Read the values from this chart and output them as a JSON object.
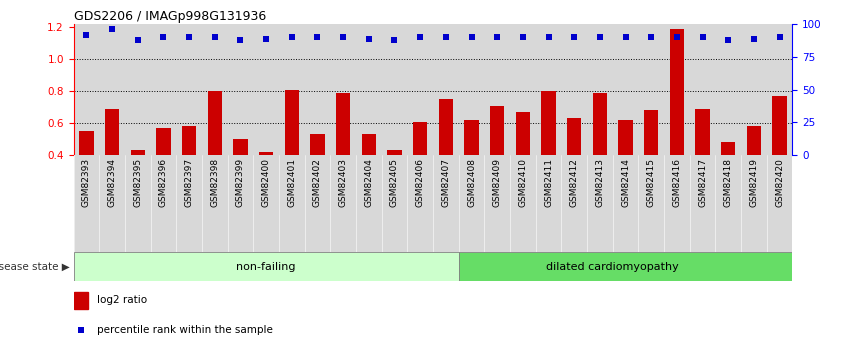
{
  "title": "GDS2206 / IMAGp998G131936",
  "samples": [
    "GSM82393",
    "GSM82394",
    "GSM82395",
    "GSM82396",
    "GSM82397",
    "GSM82398",
    "GSM82399",
    "GSM82400",
    "GSM82401",
    "GSM82402",
    "GSM82403",
    "GSM82404",
    "GSM82405",
    "GSM82406",
    "GSM82407",
    "GSM82408",
    "GSM82409",
    "GSM82410",
    "GSM82411",
    "GSM82412",
    "GSM82413",
    "GSM82414",
    "GSM82415",
    "GSM82416",
    "GSM82417",
    "GSM82418",
    "GSM82419",
    "GSM82420"
  ],
  "log2_ratio": [
    0.55,
    0.69,
    0.43,
    0.57,
    0.58,
    0.8,
    0.5,
    0.42,
    0.81,
    0.53,
    0.79,
    0.53,
    0.43,
    0.61,
    0.75,
    0.62,
    0.71,
    0.67,
    0.8,
    0.63,
    0.79,
    0.62,
    0.68,
    1.19,
    0.69,
    0.48,
    0.58,
    0.77
  ],
  "percentile_left_axis": [
    1.15,
    1.19,
    1.12,
    1.14,
    1.14,
    1.14,
    1.12,
    1.13,
    1.14,
    1.14,
    1.14,
    1.13,
    1.12,
    1.14,
    1.14,
    1.14,
    1.14,
    1.14,
    1.14,
    1.14,
    1.14,
    1.14,
    1.14,
    1.14,
    1.14,
    1.12,
    1.13,
    1.14
  ],
  "non_failing_count": 15,
  "bar_color": "#cc0000",
  "dot_color": "#0000cc",
  "ylim": [
    0.4,
    1.22
  ],
  "yticks_left": [
    0.4,
    0.6,
    0.8,
    1.0,
    1.2
  ],
  "yticks_right": [
    0,
    25,
    50,
    75,
    100
  ],
  "dotted_lines": [
    0.6,
    0.8,
    1.0
  ],
  "group1_label": "non-failing",
  "group2_label": "dilated cardiomyopathy",
  "disease_state_label": "disease state",
  "legend_bar_label": "log2 ratio",
  "legend_dot_label": "percentile rank within the sample",
  "bg_nonfailing": "#ccffcc",
  "bg_dilated": "#66dd66",
  "col_bg_color": "#d8d8d8",
  "col_bg_alpha": 1.0
}
